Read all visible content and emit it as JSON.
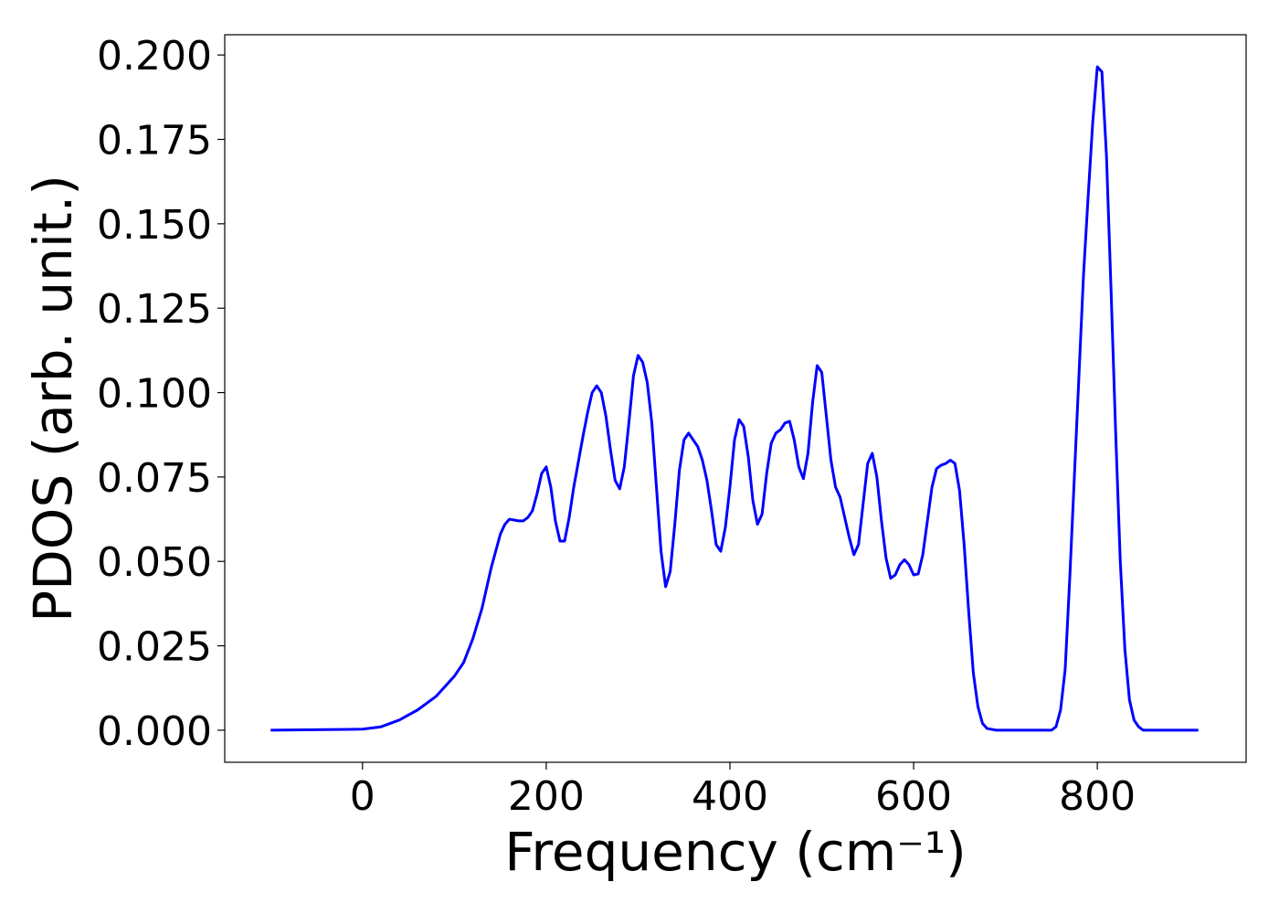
{
  "chart_data": {
    "type": "line",
    "xlabel": "Frequency (cm⁻¹)",
    "ylabel": "PDOS (arb. unit.)",
    "x": [
      -100,
      0,
      20,
      40,
      60,
      80,
      100,
      110,
      120,
      130,
      140,
      150,
      155,
      160,
      170,
      175,
      180,
      185,
      190,
      195,
      200,
      205,
      210,
      215,
      220,
      225,
      230,
      240,
      245,
      250,
      255,
      260,
      265,
      270,
      275,
      280,
      285,
      290,
      295,
      300,
      305,
      310,
      315,
      320,
      325,
      330,
      335,
      340,
      345,
      350,
      355,
      360,
      365,
      370,
      375,
      380,
      385,
      390,
      395,
      400,
      405,
      410,
      415,
      420,
      425,
      430,
      435,
      440,
      445,
      450,
      455,
      460,
      465,
      470,
      475,
      480,
      485,
      490,
      495,
      500,
      505,
      510,
      515,
      520,
      525,
      530,
      535,
      540,
      545,
      550,
      555,
      560,
      565,
      570,
      575,
      580,
      585,
      590,
      595,
      600,
      605,
      610,
      615,
      620,
      625,
      630,
      635,
      640,
      645,
      650,
      655,
      660,
      665,
      670,
      675,
      680,
      690,
      750,
      755,
      760,
      765,
      770,
      775,
      780,
      785,
      790,
      795,
      800,
      805,
      810,
      815,
      820,
      825,
      830,
      835,
      840,
      845,
      850,
      910
    ],
    "series": [
      {
        "color": "#0000ff",
        "values": [
          0,
          0.0003,
          0.001,
          0.003,
          0.006,
          0.01,
          0.016,
          0.02,
          0.027,
          0.036,
          0.048,
          0.058,
          0.061,
          0.0625,
          0.062,
          0.062,
          0.063,
          0.065,
          0.07,
          0.076,
          0.078,
          0.072,
          0.062,
          0.056,
          0.056,
          0.063,
          0.072,
          0.087,
          0.094,
          0.1,
          0.102,
          0.1,
          0.093,
          0.083,
          0.074,
          0.0715,
          0.078,
          0.091,
          0.105,
          0.111,
          0.109,
          0.103,
          0.091,
          0.072,
          0.053,
          0.0425,
          0.047,
          0.061,
          0.077,
          0.086,
          0.088,
          0.086,
          0.084,
          0.08,
          0.074,
          0.065,
          0.055,
          0.053,
          0.06,
          0.072,
          0.086,
          0.092,
          0.09,
          0.081,
          0.068,
          0.061,
          0.064,
          0.076,
          0.085,
          0.088,
          0.089,
          0.091,
          0.0915,
          0.086,
          0.078,
          0.0745,
          0.082,
          0.097,
          0.108,
          0.106,
          0.093,
          0.08,
          0.072,
          0.069,
          0.063,
          0.057,
          0.052,
          0.055,
          0.067,
          0.079,
          0.082,
          0.075,
          0.062,
          0.051,
          0.045,
          0.046,
          0.049,
          0.0505,
          0.049,
          0.046,
          0.0463,
          0.052,
          0.062,
          0.072,
          0.0775,
          0.0785,
          0.079,
          0.08,
          0.079,
          0.071,
          0.055,
          0.035,
          0.017,
          0.007,
          0.002,
          0.0005,
          0,
          0,
          0.001,
          0.006,
          0.018,
          0.045,
          0.075,
          0.105,
          0.135,
          0.158,
          0.18,
          0.1965,
          0.195,
          0.17,
          0.13,
          0.088,
          0.05,
          0.024,
          0.009,
          0.003,
          0.001,
          0,
          0
        ]
      }
    ],
    "xlim": [
      -150,
      962
    ],
    "ylim": [
      -0.0095,
      0.206
    ],
    "xticks": [
      0,
      200,
      400,
      600,
      800
    ],
    "yticks": [
      {
        "value": 0,
        "label": "0.000"
      },
      {
        "value": 0.025,
        "label": "0.025"
      },
      {
        "value": 0.05,
        "label": "0.050"
      },
      {
        "value": 0.075,
        "label": "0.075"
      },
      {
        "value": 0.1,
        "label": "0.100"
      },
      {
        "value": 0.125,
        "label": "0.125"
      },
      {
        "value": 0.15,
        "label": "0.150"
      },
      {
        "value": 0.175,
        "label": "0.175"
      },
      {
        "value": 0.2,
        "label": "0.200"
      }
    ],
    "grid": false
  }
}
